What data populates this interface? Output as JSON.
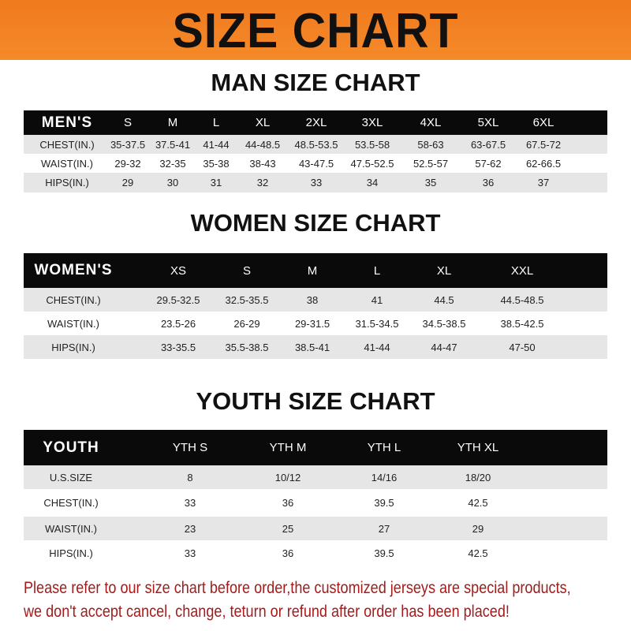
{
  "banner_title": "SIZE CHART",
  "colors": {
    "banner": "#f58a2a",
    "header_row": "#0a0a0a",
    "stripe": "#e6e6e6",
    "notice": "#a51b1b"
  },
  "men": {
    "title": "MAN SIZE CHART",
    "header": [
      "MEN'S",
      "S",
      "M",
      "L",
      "XL",
      "2XL",
      "3XL",
      "4XL",
      "5XL",
      "6XL"
    ],
    "rows": [
      [
        "CHEST(IN.)",
        "35-37.5",
        "37.5-41",
        "41-44",
        "44-48.5",
        "48.5-53.5",
        "53.5-58",
        "58-63",
        "63-67.5",
        "67.5-72"
      ],
      [
        "WAIST(IN.)",
        "29-32",
        "32-35",
        "35-38",
        "38-43",
        "43-47.5",
        "47.5-52.5",
        "52.5-57",
        "57-62",
        "62-66.5"
      ],
      [
        "HIPS(IN.)",
        "29",
        "30",
        "31",
        "32",
        "33",
        "34",
        "35",
        "36",
        "37"
      ]
    ]
  },
  "women": {
    "title": "WOMEN SIZE CHART",
    "header": [
      "WOMEN'S",
      "XS",
      "S",
      "M",
      "L",
      "XL",
      "XXL"
    ],
    "rows": [
      [
        "CHEST(IN.)",
        "29.5-32.5",
        "32.5-35.5",
        "38",
        "41",
        "44.5",
        "44.5-48.5"
      ],
      [
        "WAIST(IN.)",
        "23.5-26",
        "26-29",
        "29-31.5",
        "31.5-34.5",
        "34.5-38.5",
        "38.5-42.5"
      ],
      [
        "HIPS(IN.)",
        "33-35.5",
        "35.5-38.5",
        "38.5-41",
        "41-44",
        "44-47",
        "47-50"
      ]
    ]
  },
  "youth": {
    "title": "YOUTH SIZE CHART",
    "header": [
      "YOUTH",
      "YTH S",
      "YTH M",
      "YTH L",
      "YTH XL"
    ],
    "rows": [
      [
        "U.S.SIZE",
        "8",
        "10/12",
        "14/16",
        "18/20"
      ],
      [
        "CHEST(IN.)",
        "33",
        "36",
        "39.5",
        "42.5"
      ],
      [
        "WAIST(IN.)",
        "23",
        "25",
        "27",
        "29"
      ],
      [
        "HIPS(IN.)",
        "33",
        "36",
        "39.5",
        "42.5"
      ]
    ]
  },
  "notice": {
    "line1": "Please refer to our size chart before order,the customized jerseys are special products,",
    "line2": "we don't accept cancel, change, teturn or refund after order has been placed!"
  }
}
